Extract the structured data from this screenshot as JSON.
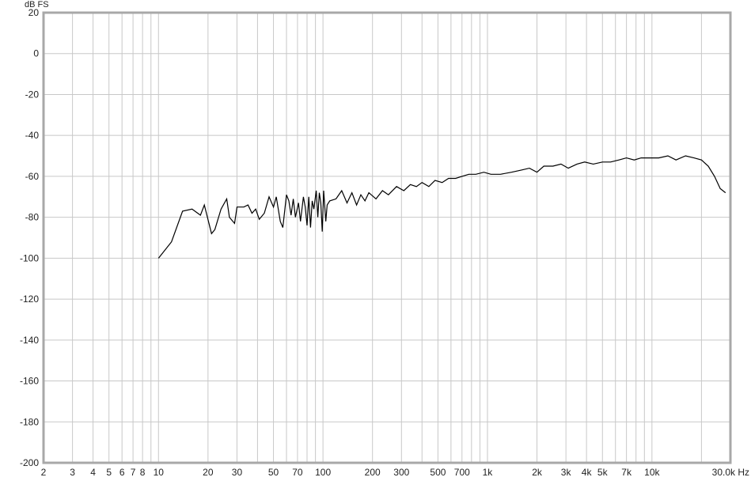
{
  "chart_data": {
    "type": "line",
    "log_x": true,
    "grid": true,
    "ylabel": "dB FS",
    "xlim": [
      2,
      30000
    ],
    "ylim": [
      -200,
      20
    ],
    "yticks": [
      20,
      0,
      -20,
      -40,
      -60,
      -80,
      -100,
      -120,
      -140,
      -160,
      -180,
      -200
    ],
    "xticks": [
      2,
      3,
      4,
      5,
      6,
      7,
      8,
      10,
      20,
      30,
      50,
      70,
      100,
      200,
      300,
      500,
      700,
      {
        "value": 1000,
        "label": "1k"
      },
      {
        "value": 2000,
        "label": "2k"
      },
      {
        "value": 3000,
        "label": "3k"
      },
      {
        "value": 4000,
        "label": "4k"
      },
      {
        "value": 5000,
        "label": "5k"
      },
      {
        "value": 7000,
        "label": "7k"
      },
      {
        "value": 10000,
        "label": "10k"
      },
      {
        "value": 30000,
        "label": "30.0k Hz"
      }
    ],
    "xminor": [
      9,
      40,
      60,
      80,
      90,
      400,
      600,
      800,
      900,
      6000,
      8000,
      9000,
      20000
    ],
    "series": [
      {
        "color": "#000000",
        "x": [
          10,
          12,
          14,
          16,
          18,
          19,
          21,
          22,
          24,
          26,
          27,
          29,
          30,
          33,
          35,
          37,
          39,
          41,
          44,
          47,
          50,
          52,
          55,
          57,
          60,
          62,
          64,
          66,
          68,
          71,
          73,
          76,
          78,
          80,
          82,
          84,
          86,
          88,
          91,
          93,
          95,
          97,
          99,
          101,
          104,
          106,
          110,
          120,
          130,
          140,
          150,
          160,
          170,
          180,
          190,
          210,
          230,
          250,
          280,
          310,
          340,
          370,
          400,
          440,
          480,
          530,
          580,
          640,
          700,
          770,
          850,
          950,
          1050,
          1200,
          1400,
          1600,
          1800,
          2000,
          2200,
          2500,
          2800,
          3100,
          3500,
          3900,
          4400,
          5000,
          5600,
          6300,
          7000,
          7800,
          8600,
          9500,
          11000,
          12500,
          14000,
          16000,
          18000,
          20000,
          22000,
          24000,
          26000,
          28000
        ],
        "values": [
          -100,
          -92,
          -77,
          -76,
          -79,
          -74,
          -88,
          -86,
          -76,
          -71,
          -80,
          -83,
          -75,
          -75,
          -74,
          -78,
          -76,
          -81,
          -78,
          -70,
          -75,
          -70,
          -82,
          -85,
          -69,
          -72,
          -79,
          -71,
          -80,
          -73,
          -82,
          -70,
          -75,
          -84,
          -70,
          -85,
          -72,
          -76,
          -67,
          -80,
          -68,
          -73,
          -87,
          -67,
          -82,
          -74,
          -72,
          -71,
          -67,
          -73,
          -68,
          -74,
          -69,
          -72,
          -68,
          -71,
          -67,
          -69,
          -65,
          -67,
          -64,
          -65,
          -63,
          -65,
          -62,
          -63,
          -61,
          -61,
          -60,
          -59,
          -59,
          -58,
          -59,
          -59,
          -58,
          -57,
          -56,
          -58,
          -55,
          -55,
          -54,
          -56,
          -54,
          -53,
          -54,
          -53,
          -53,
          -52,
          -51,
          -52,
          -51,
          -51,
          -51,
          -50,
          -52,
          -50,
          -51,
          -52,
          -55,
          -60,
          -66,
          -68
        ]
      }
    ]
  }
}
